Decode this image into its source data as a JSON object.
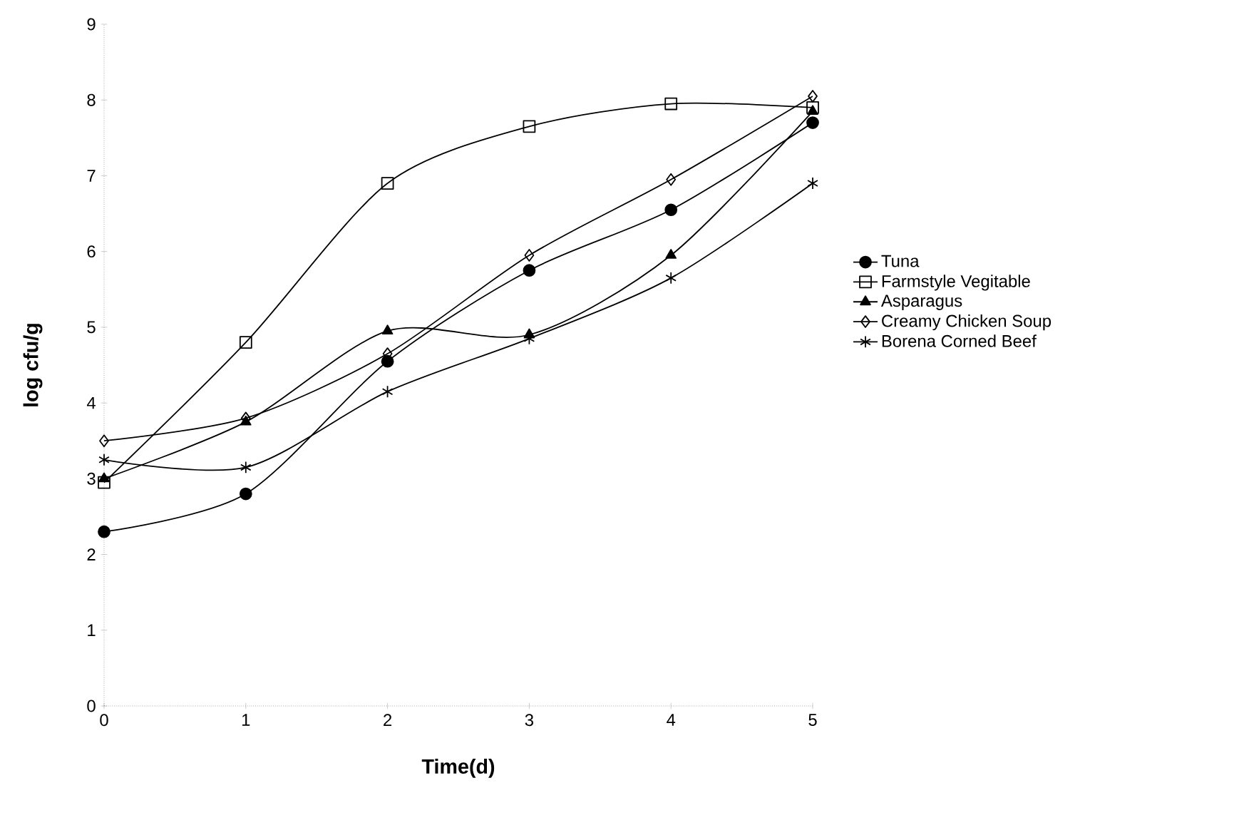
{
  "chart_data": {
    "type": "line",
    "xlabel": "Time(d)",
    "ylabel": "log cfu/g",
    "x": [
      0,
      1,
      2,
      3,
      4,
      5
    ],
    "xlim": [
      0,
      5
    ],
    "xticks": [
      0,
      1,
      2,
      3,
      4,
      5
    ],
    "ylim": [
      0,
      9
    ],
    "yticks": [
      0,
      1,
      2,
      3,
      4,
      5,
      6,
      7,
      8,
      9
    ],
    "legend": "right",
    "grid": false,
    "series": [
      {
        "name": "Tuna",
        "color": "#000000",
        "marker": "circle",
        "values": [
          2.3,
          2.8,
          4.55,
          5.75,
          6.55,
          7.7
        ]
      },
      {
        "name": "Farmstyle  Vegitable",
        "color": "#000000",
        "marker": "square",
        "values": [
          2.95,
          4.8,
          6.9,
          7.65,
          7.95,
          7.9
        ]
      },
      {
        "name": "Asparagus",
        "color": "#000000",
        "marker": "triangle",
        "values": [
          3.0,
          3.75,
          4.95,
          4.9,
          5.95,
          7.85
        ]
      },
      {
        "name": "Creamy Chicken Soup",
        "color": "#000000",
        "marker": "diamond",
        "values": [
          3.5,
          3.8,
          4.65,
          5.95,
          6.95,
          8.05
        ]
      },
      {
        "name": "Borena Corned Beef",
        "color": "#000000",
        "marker": "cross",
        "values": [
          3.25,
          3.15,
          4.15,
          4.85,
          5.65,
          6.9
        ]
      }
    ]
  }
}
